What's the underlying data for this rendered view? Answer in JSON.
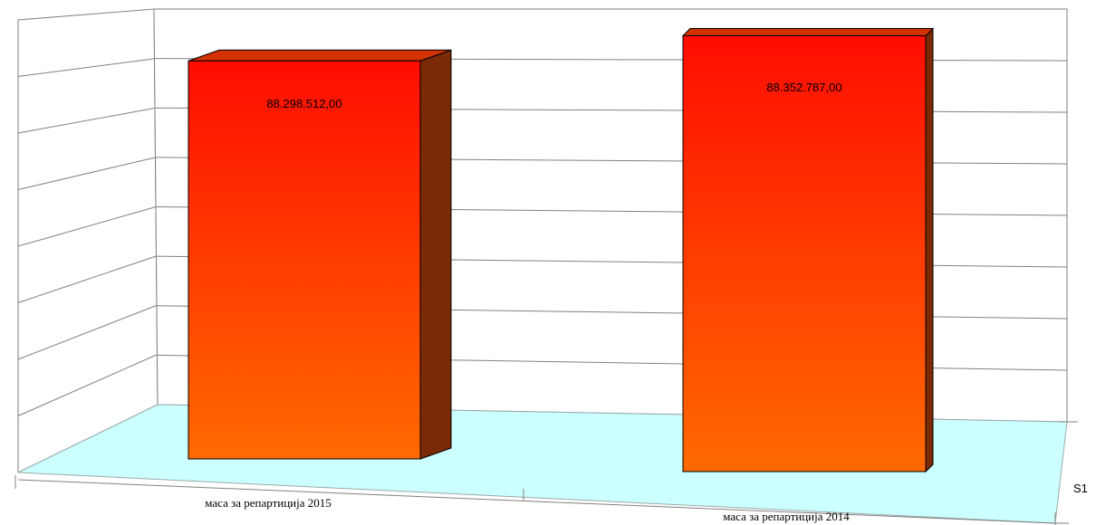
{
  "chart_data": {
    "type": "bar",
    "style": "3d-column",
    "categories": [
      "маса за репартиција 2015",
      "маса за репартиција 2014"
    ],
    "series": [
      {
        "name": "S1",
        "values": [
          88298512.0,
          88352787.0
        ]
      }
    ],
    "data_labels": [
      "88.298.512,00",
      "88.352.787,00"
    ],
    "ylim": [
      0,
      100000000
    ],
    "grid": true,
    "tick_labels_shown": false,
    "colors": {
      "bar_top": "#ff0d00",
      "bar_bottom": "#ff6a00",
      "bar_side": "#7a2a05",
      "bar_cap": "#d13200",
      "floor": "#ccffff",
      "gridline": "#808080"
    }
  }
}
